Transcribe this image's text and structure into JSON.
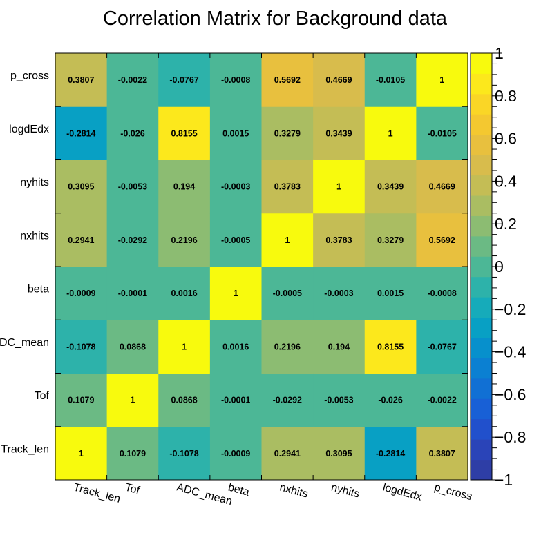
{
  "chart_data": {
    "type": "heatmap",
    "title": "Correlation Matrix for Background data",
    "variables": [
      "Track_len",
      "Tof",
      "ADC_mean",
      "beta",
      "nxhits",
      "nyhits",
      "logdEdx",
      "p_cross"
    ],
    "matrix": [
      [
        1,
        0.1079,
        -0.1078,
        -0.0009,
        0.2941,
        0.3095,
        -0.2814,
        0.3807
      ],
      [
        0.1079,
        1,
        0.0868,
        -0.0001,
        -0.0292,
        -0.0053,
        -0.026,
        -0.0022
      ],
      [
        -0.1078,
        0.0868,
        1,
        0.0016,
        0.2196,
        0.194,
        0.8155,
        -0.0767
      ],
      [
        -0.0009,
        -0.0001,
        0.0016,
        1,
        -0.0005,
        -0.0003,
        0.0015,
        -0.0008
      ],
      [
        0.2941,
        -0.0292,
        0.2196,
        -0.0005,
        1,
        0.3783,
        0.3279,
        0.5692
      ],
      [
        0.3095,
        -0.0053,
        0.194,
        -0.0003,
        0.3783,
        1,
        0.3439,
        0.4669
      ],
      [
        -0.2814,
        -0.026,
        0.8155,
        0.0015,
        0.3279,
        0.3439,
        1,
        -0.0105
      ],
      [
        0.3807,
        -0.0022,
        -0.0767,
        -0.0008,
        0.5692,
        0.4669,
        -0.0105,
        1
      ]
    ],
    "zlim": [
      -1,
      1
    ],
    "z_ticks": [
      1,
      0.8,
      0.6,
      0.4,
      0.2,
      0,
      -0.2,
      -0.4,
      -0.6,
      -0.8,
      -1
    ],
    "z_tick_labels": [
      "1",
      "0.8",
      "0.6",
      "0.4",
      "0.2",
      "0",
      "−0.2",
      "−0.4",
      "−0.6",
      "−0.8",
      "−1"
    ],
    "palette": [
      "#2e3ea6",
      "#2a44b8",
      "#2150cc",
      "#1860d6",
      "#1170d4",
      "#0b80d2",
      "#0790cc",
      "#08a0c4",
      "#16abba",
      "#2db2aa",
      "#4cb796",
      "#6bba84",
      "#8cbc72",
      "#aabd62",
      "#c4bd55",
      "#d8bc4c",
      "#e8c03e",
      "#f4c830",
      "#fad626",
      "#fce81c",
      "#f8fa0d"
    ],
    "legend": "right colorbar"
  }
}
